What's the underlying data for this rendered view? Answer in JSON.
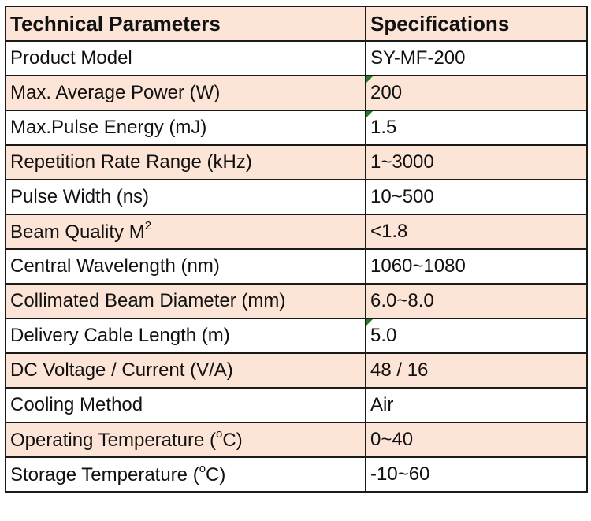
{
  "table": {
    "headers": [
      "Technical Parameters",
      "Specifications"
    ],
    "rows": [
      {
        "parameter": "Product Model",
        "value": "SY-MF-200"
      },
      {
        "parameter": "Max. Average Power (W)",
        "value": "200"
      },
      {
        "parameter": "Max.Pulse Energy (mJ)",
        "value": "1.5"
      },
      {
        "parameter": "Repetition Rate Range (kHz)",
        "value": "1~3000"
      },
      {
        "parameter": "Pulse Width (ns)",
        "value": "10~500"
      },
      {
        "parameter": "Beam Quality M",
        "parameter_sup": "2",
        "value": "<1.8"
      },
      {
        "parameter": "Central Wavelength (nm)",
        "value": "1060~1080"
      },
      {
        "parameter": "Collimated Beam Diameter (mm)",
        "value": "6.0~8.0"
      },
      {
        "parameter": "Delivery Cable Length (m)",
        "value": "5.0"
      },
      {
        "parameter": "DC Voltage / Current (V/A)",
        "value": "48 / 16"
      },
      {
        "parameter": "Cooling Method",
        "value": "Air"
      },
      {
        "parameter": "Operating Temperature (",
        "parameter_sup": "o",
        "parameter_after": "C)",
        "value": "0~40"
      },
      {
        "parameter": "Storage Temperature (",
        "parameter_sup": "o",
        "parameter_after": "C)",
        "value": "-10~60"
      }
    ]
  },
  "colors": {
    "row_shade": "#fce4d6",
    "border": "#1a1a1a",
    "comment_marker": "#1e7b2a"
  }
}
